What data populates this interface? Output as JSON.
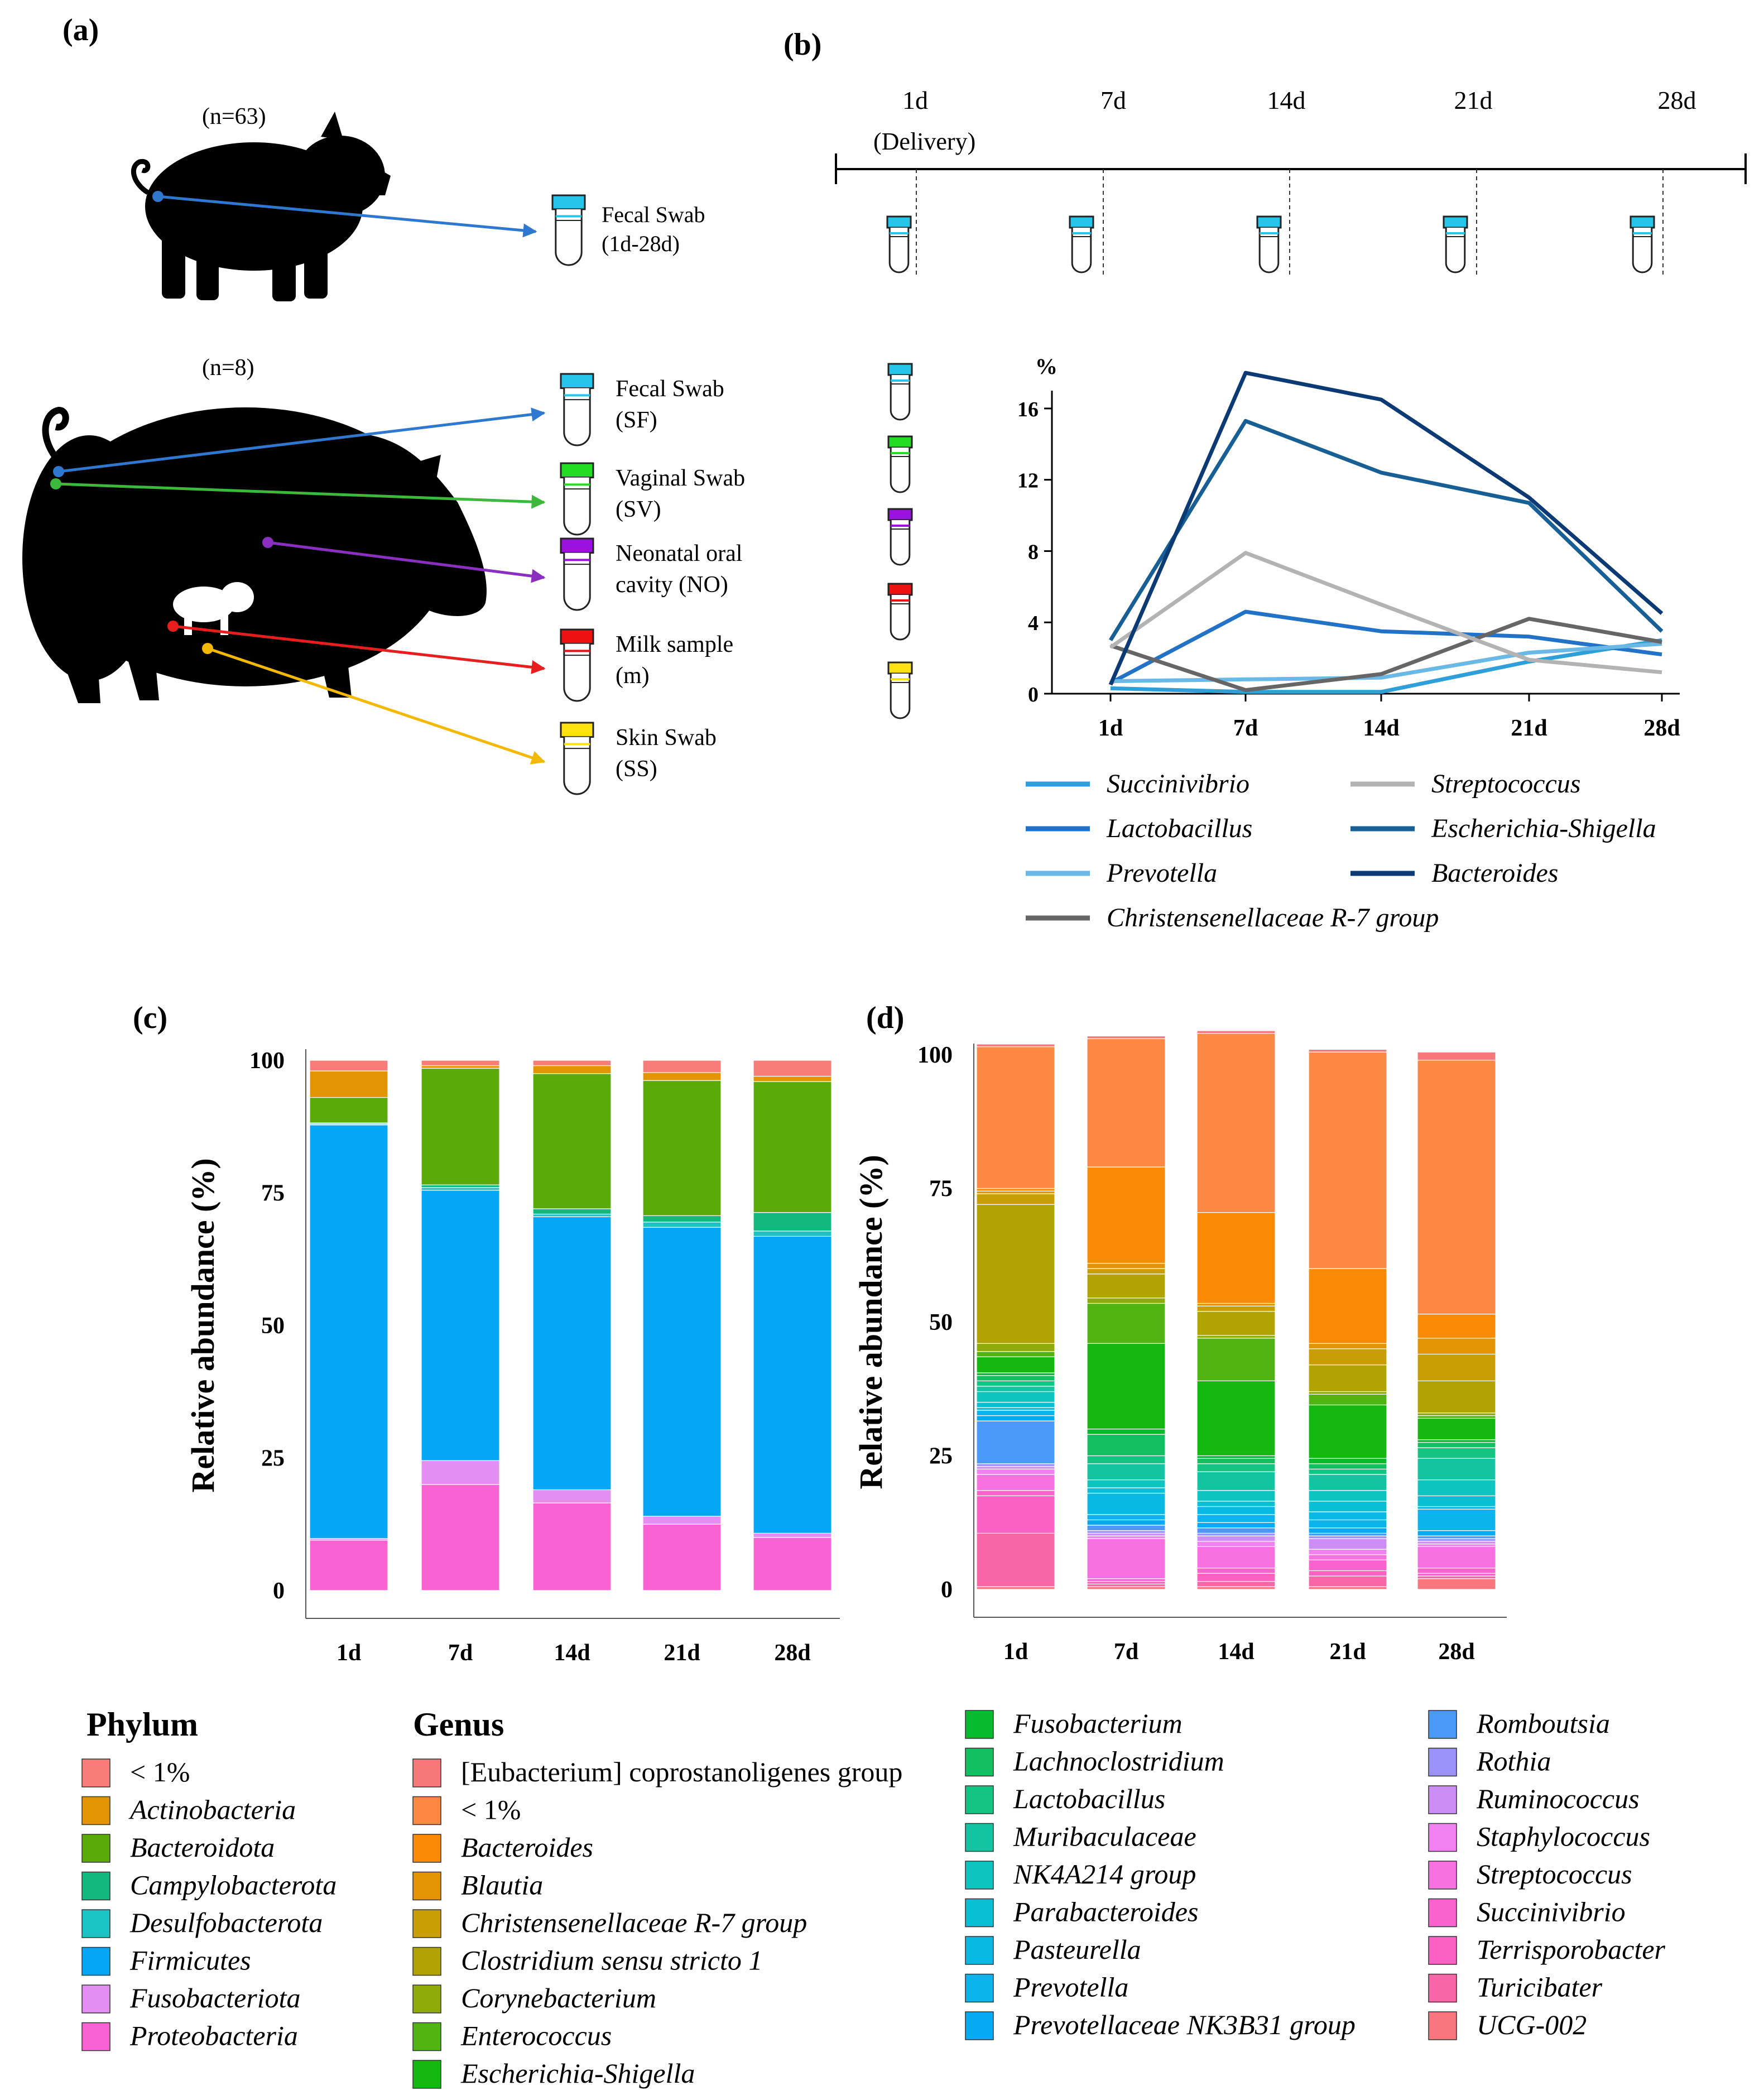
{
  "figure": {
    "panel_a": "(a)",
    "panel_b": "(b)",
    "panel_c": "(c)",
    "panel_d": "(d)"
  },
  "panel_a": {
    "piglet_n": "(n=63)",
    "sow_n": "(n=8)",
    "piglet_sample": {
      "line1": "Fecal Swab",
      "line2": "(1d-28d)",
      "cap": "#26c6ea",
      "arrow": "#2f78d0"
    },
    "samples": [
      {
        "line1": "Fecal Swab",
        "line2": "(SF)",
        "cap": "#26c6ea",
        "arrow": "#2f78d0"
      },
      {
        "line1": "Vaginal Swab",
        "line2": "(SV)",
        "cap": "#22dd22",
        "arrow": "#3cb83c"
      },
      {
        "line1": "Neonatal oral",
        "line2": "cavity (NO)",
        "cap": "#9b12e0",
        "arrow": "#8a2fc0"
      },
      {
        "line1": "Milk sample",
        "line2": "(m)",
        "cap": "#ee1111",
        "arrow": "#e81e1e"
      },
      {
        "line1": "Skin Swab",
        "line2": "(SS)",
        "cap": "#ffe010",
        "arrow": "#f5b800"
      }
    ]
  },
  "timeline": {
    "labels": [
      "1d",
      "7d",
      "14d",
      "21d",
      "28d"
    ],
    "delivery": "(Delivery)"
  },
  "chart_data": [
    {
      "type": "line",
      "title": "",
      "ylabel": "%",
      "xlabel": "",
      "ylim": [
        0,
        17
      ],
      "yticks": [
        0,
        4,
        8,
        12,
        16
      ],
      "x": [
        "1d",
        "7d",
        "14d",
        "21d",
        "28d"
      ],
      "series": [
        {
          "name": "Succinivibrio",
          "color": "#2e9fd8",
          "values": [
            0.3,
            0.1,
            0.1,
            1.8,
            3.0
          ]
        },
        {
          "name": "Lactobacillus",
          "color": "#2272c8",
          "values": [
            0.6,
            4.6,
            3.5,
            3.2,
            2.2
          ]
        },
        {
          "name": "Prevotella",
          "color": "#6ab8e6",
          "values": [
            0.7,
            0.8,
            0.9,
            2.3,
            2.8
          ]
        },
        {
          "name": "Christensenellaceae R-7 group",
          "color": "#666666",
          "values": [
            2.7,
            0.2,
            1.1,
            4.2,
            2.9
          ]
        },
        {
          "name": "Streptococcus",
          "color": "#b3b3b3",
          "values": [
            2.6,
            7.9,
            5.0,
            1.9,
            1.2
          ]
        },
        {
          "name": "Escherichia-Shigella",
          "color": "#175f95",
          "values": [
            3.0,
            15.3,
            12.4,
            10.7,
            3.5
          ]
        },
        {
          "name": "Bacteroides",
          "color": "#0b3a75",
          "values": [
            0.5,
            18.0,
            16.5,
            11.0,
            4.5
          ]
        }
      ]
    },
    {
      "type": "bar",
      "stacked": true,
      "ylabel": "Relative abundance (%)",
      "ylim": [
        0,
        100
      ],
      "yticks": [
        0,
        25,
        50,
        75,
        100
      ],
      "categories": [
        "1d",
        "7d",
        "14d",
        "21d",
        "28d"
      ],
      "series": [
        {
          "name": "Proteobacteria",
          "color": "#f962d2",
          "values": [
            9.5,
            20.0,
            16.5,
            12.5,
            10.0
          ]
        },
        {
          "name": "Fusobacteriota",
          "color": "#e38ef2",
          "values": [
            0.3,
            4.5,
            2.5,
            1.5,
            0.8
          ]
        },
        {
          "name": "Firmicutes",
          "color": "#04a6f5",
          "values": [
            78.0,
            51.0,
            51.5,
            54.5,
            56.0
          ]
        },
        {
          "name": "Desulfobacterota",
          "color": "#1bc4c4",
          "values": [
            0.2,
            0.5,
            0.5,
            1.0,
            1.0
          ]
        },
        {
          "name": "Campylobacterota",
          "color": "#13b87e",
          "values": [
            0.2,
            0.5,
            1.0,
            1.2,
            3.5
          ]
        },
        {
          "name": "Bacteroidota",
          "color": "#5aaa08",
          "values": [
            4.8,
            22.0,
            25.5,
            25.5,
            24.7
          ]
        },
        {
          "name": "Actinobacteria",
          "color": "#e39402",
          "values": [
            5.0,
            0.5,
            1.5,
            1.5,
            1.0
          ]
        },
        {
          "name": "< 1%",
          "color": "#f87d78",
          "values": [
            2.0,
            1.0,
            1.0,
            2.3,
            3.0
          ]
        }
      ]
    },
    {
      "type": "bar",
      "stacked": true,
      "ylabel": "Relative abundance (%)",
      "ylim": [
        0,
        100
      ],
      "yticks": [
        0,
        25,
        50,
        75,
        100
      ],
      "categories": [
        "1d",
        "7d",
        "14d",
        "21d",
        "28d"
      ],
      "series": [
        {
          "name": "UCG-002",
          "color": "#f8767d",
          "values": [
            0.5,
            0.5,
            0.5,
            0.5,
            2.0
          ]
        },
        {
          "name": "Turicibater",
          "color": "#f966a8",
          "values": [
            10.0,
            0.5,
            1.0,
            2.0,
            0.5
          ]
        },
        {
          "name": "Terrisporobacter",
          "color": "#fb61c2",
          "values": [
            7.0,
            0.5,
            1.5,
            1.0,
            0.5
          ]
        },
        {
          "name": "Succinivibrio",
          "color": "#f863cc",
          "values": [
            1.0,
            0.5,
            1.0,
            2.0,
            1.0
          ]
        },
        {
          "name": "Streptococcus",
          "color": "#f770e0",
          "values": [
            3.0,
            7.5,
            4.0,
            1.0,
            4.0
          ]
        },
        {
          "name": "Staphylococcus",
          "color": "#f181f0",
          "values": [
            1.0,
            0.5,
            1.0,
            1.0,
            0.5
          ]
        },
        {
          "name": "Ruminococcus",
          "color": "#cc8ef4",
          "values": [
            0.5,
            0.5,
            1.0,
            2.0,
            0.5
          ]
        },
        {
          "name": "Rothia",
          "color": "#9a92f8",
          "values": [
            0.5,
            0.5,
            0.5,
            0.5,
            0.5
          ]
        },
        {
          "name": "Romboutsia",
          "color": "#4a98f8",
          "values": [
            8.0,
            1.0,
            1.0,
            0.5,
            0.5
          ]
        },
        {
          "name": "Prevotellaceae NK3B31 group",
          "color": "#05aaf2",
          "values": [
            1.0,
            1.0,
            1.0,
            1.0,
            1.0
          ]
        },
        {
          "name": "Prevotella",
          "color": "#0cb4ee",
          "values": [
            1.0,
            1.0,
            1.5,
            1.5,
            4.0
          ]
        },
        {
          "name": "Pasteurella",
          "color": "#08b9e4",
          "values": [
            0.5,
            4.0,
            1.5,
            1.5,
            0.5
          ]
        },
        {
          "name": "Parabacteroides",
          "color": "#09bfd4",
          "values": [
            1.0,
            1.0,
            1.0,
            2.0,
            2.0
          ]
        },
        {
          "name": "NK4A214 group",
          "color": "#0ec4be",
          "values": [
            2.0,
            1.5,
            2.0,
            2.0,
            3.0
          ]
        },
        {
          "name": "Muribaculaceae",
          "color": "#12c4a2",
          "values": [
            1.0,
            3.0,
            3.5,
            3.0,
            4.0
          ]
        },
        {
          "name": "Lactobacillus",
          "color": "#14c483",
          "values": [
            1.0,
            1.5,
            1.5,
            1.0,
            2.0
          ]
        },
        {
          "name": "Lachnoclostridium",
          "color": "#12c062",
          "values": [
            1.0,
            4.0,
            1.0,
            1.0,
            1.0
          ]
        },
        {
          "name": "Fusobacterium",
          "color": "#06bb2e",
          "values": [
            0.5,
            1.0,
            0.5,
            1.0,
            0.5
          ]
        },
        {
          "name": "Escherichia-Shigella",
          "color": "#14b810",
          "values": [
            3.0,
            16.0,
            14.0,
            10.0,
            4.0
          ]
        },
        {
          "name": "Enterococcus",
          "color": "#52b412",
          "values": [
            1.0,
            7.5,
            8.0,
            2.0,
            0.5
          ]
        },
        {
          "name": "Corynebacterium",
          "color": "#8eab0a",
          "values": [
            1.5,
            1.0,
            0.5,
            0.5,
            0.5
          ]
        },
        {
          "name": "Clostridium sensu stricto 1",
          "color": "#b1a402",
          "values": [
            26.0,
            4.5,
            4.5,
            5.0,
            6.0
          ]
        },
        {
          "name": "Christensenellaceae R-7 group",
          "color": "#c99d04",
          "values": [
            2.0,
            1.0,
            1.0,
            3.0,
            5.0
          ]
        },
        {
          "name": "Blautia",
          "color": "#e39402",
          "values": [
            0.5,
            1.0,
            0.5,
            1.0,
            3.0
          ]
        },
        {
          "name": "Bacteroides",
          "color": "#fb8a05",
          "values": [
            0.5,
            18.0,
            17.0,
            14.0,
            4.5
          ]
        },
        {
          "name": "< 1%",
          "color": "#fc8843",
          "values": [
            26.5,
            24.0,
            33.5,
            40.5,
            47.5
          ]
        },
        {
          "name": "[Eubacterium] coprostanoligenes group",
          "color": "#f7787a",
          "values": [
            0.5,
            0.5,
            0.5,
            0.5,
            1.5
          ]
        }
      ]
    }
  ],
  "legend_b": [
    {
      "name": "Succinivibrio",
      "color": "#2e9fd8"
    },
    {
      "name": "Streptococcus",
      "color": "#b3b3b3"
    },
    {
      "name": "Lactobacillus",
      "color": "#2272c8"
    },
    {
      "name": "Escherichia-Shigella",
      "color": "#175f95"
    },
    {
      "name": "Prevotella",
      "color": "#6ab8e6"
    },
    {
      "name": "Bacteroides",
      "color": "#0b3a75"
    },
    {
      "name": "Christensenellaceae R-7 group",
      "color": "#666666"
    }
  ],
  "legend_phylum": {
    "title": "Phylum",
    "items": [
      {
        "name": "< 1%",
        "color": "#f87d78",
        "italic": false
      },
      {
        "name": "Actinobacteria",
        "color": "#e39402",
        "italic": true
      },
      {
        "name": "Bacteroidota",
        "color": "#5aaa08",
        "italic": true
      },
      {
        "name": "Campylobacterota",
        "color": "#13b87e",
        "italic": true
      },
      {
        "name": "Desulfobacterota",
        "color": "#1bc4c4",
        "italic": true
      },
      {
        "name": "Firmicutes",
        "color": "#04a6f5",
        "italic": true
      },
      {
        "name": "Fusobacteriota",
        "color": "#e38ef2",
        "italic": true
      },
      {
        "name": "Proteobacteria",
        "color": "#f962d2",
        "italic": true
      }
    ]
  },
  "legend_genus": {
    "title": "Genus",
    "items": [
      {
        "name": "[Eubacterium] coprostanoligenes group",
        "color": "#f7787a",
        "italic": false
      },
      {
        "name": "< 1%",
        "color": "#fc8843",
        "italic": false
      },
      {
        "name": "Bacteroides",
        "color": "#fb8a05",
        "italic": true
      },
      {
        "name": "Blautia",
        "color": "#e39402",
        "italic": true
      },
      {
        "name": "Christensenellaceae R-7 group",
        "color": "#c99d04",
        "italic": true
      },
      {
        "name": "Clostridium sensu stricto 1",
        "color": "#b1a402",
        "italic": true
      },
      {
        "name": "Corynebacterium",
        "color": "#8eab0a",
        "italic": true
      },
      {
        "name": "Enterococcus",
        "color": "#52b412",
        "italic": true
      },
      {
        "name": "Escherichia-Shigella",
        "color": "#14b810",
        "italic": true
      },
      {
        "name": "Fusobacterium",
        "color": "#06bb2e",
        "italic": true
      },
      {
        "name": "Lachnoclostridium",
        "color": "#12c062",
        "italic": true
      },
      {
        "name": "Lactobacillus",
        "color": "#14c483",
        "italic": true
      },
      {
        "name": "Muribaculaceae",
        "color": "#12c4a2",
        "italic": true
      },
      {
        "name": "NK4A214 group",
        "color": "#0ec4be",
        "italic": true
      },
      {
        "name": "Parabacteroides",
        "color": "#09bfd4",
        "italic": true
      },
      {
        "name": "Pasteurella",
        "color": "#08b9e4",
        "italic": true
      },
      {
        "name": "Prevotella",
        "color": "#0cb4ee",
        "italic": true
      },
      {
        "name": "Prevotellaceae NK3B31 group",
        "color": "#05aaf2",
        "italic": true
      },
      {
        "name": "Romboutsia",
        "color": "#4a98f8",
        "italic": true
      },
      {
        "name": "Rothia",
        "color": "#9a92f8",
        "italic": true
      },
      {
        "name": "Ruminococcus",
        "color": "#cc8ef4",
        "italic": true
      },
      {
        "name": "Staphylococcus",
        "color": "#f181f0",
        "italic": true
      },
      {
        "name": "Streptococcus",
        "color": "#f770e0",
        "italic": true
      },
      {
        "name": "Succinivibrio",
        "color": "#f863cc",
        "italic": true
      },
      {
        "name": "Terrisporobacter",
        "color": "#fb61c2",
        "italic": true
      },
      {
        "name": "Turicibater",
        "color": "#f966a8",
        "italic": true
      },
      {
        "name": "UCG-002",
        "color": "#f8767d",
        "italic": true
      }
    ]
  }
}
